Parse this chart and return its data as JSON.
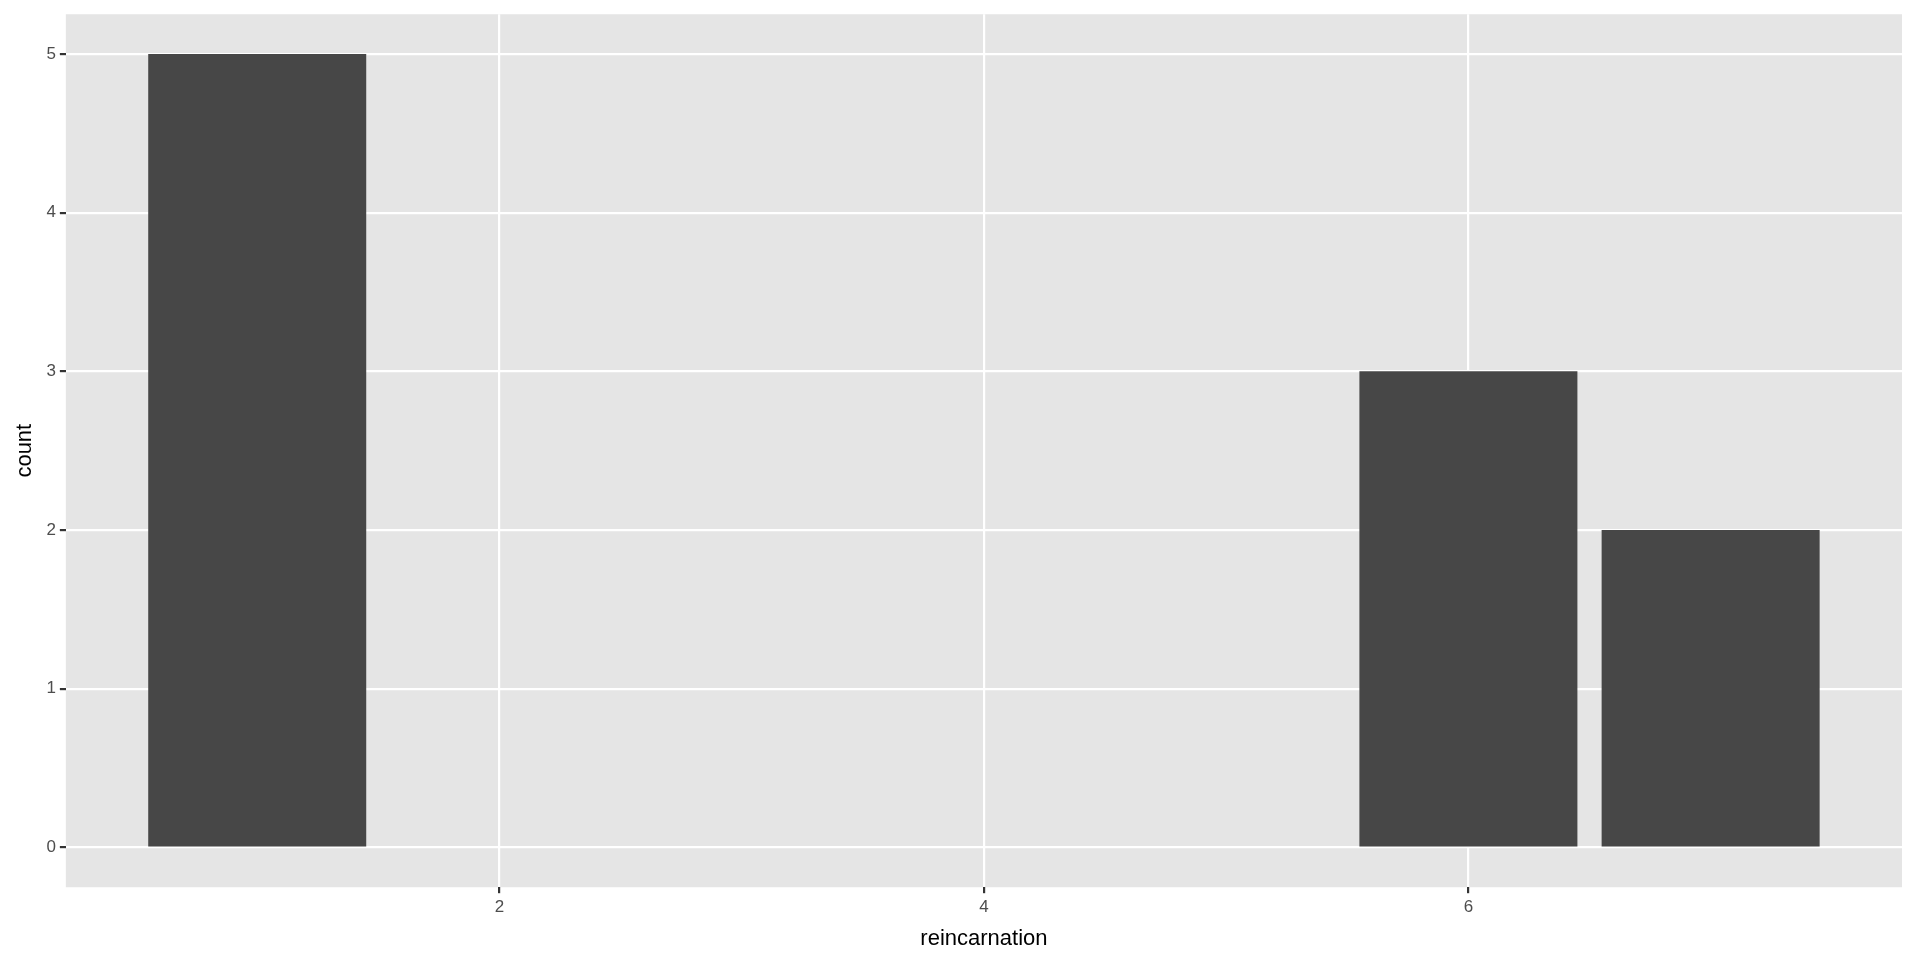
{
  "chart_data": {
    "type": "bar",
    "xlabel": "reincarnation",
    "ylabel": "count",
    "x": [
      1,
      6,
      7
    ],
    "values": [
      5,
      3,
      2
    ],
    "color": "#474747",
    "xlim": [
      0.21,
      7.79
    ],
    "xticks": [
      2,
      4,
      6
    ],
    "ylim": [
      -0.25,
      5.25
    ],
    "yticks": [
      0,
      1,
      2,
      3,
      4,
      5
    ],
    "grid": true
  }
}
